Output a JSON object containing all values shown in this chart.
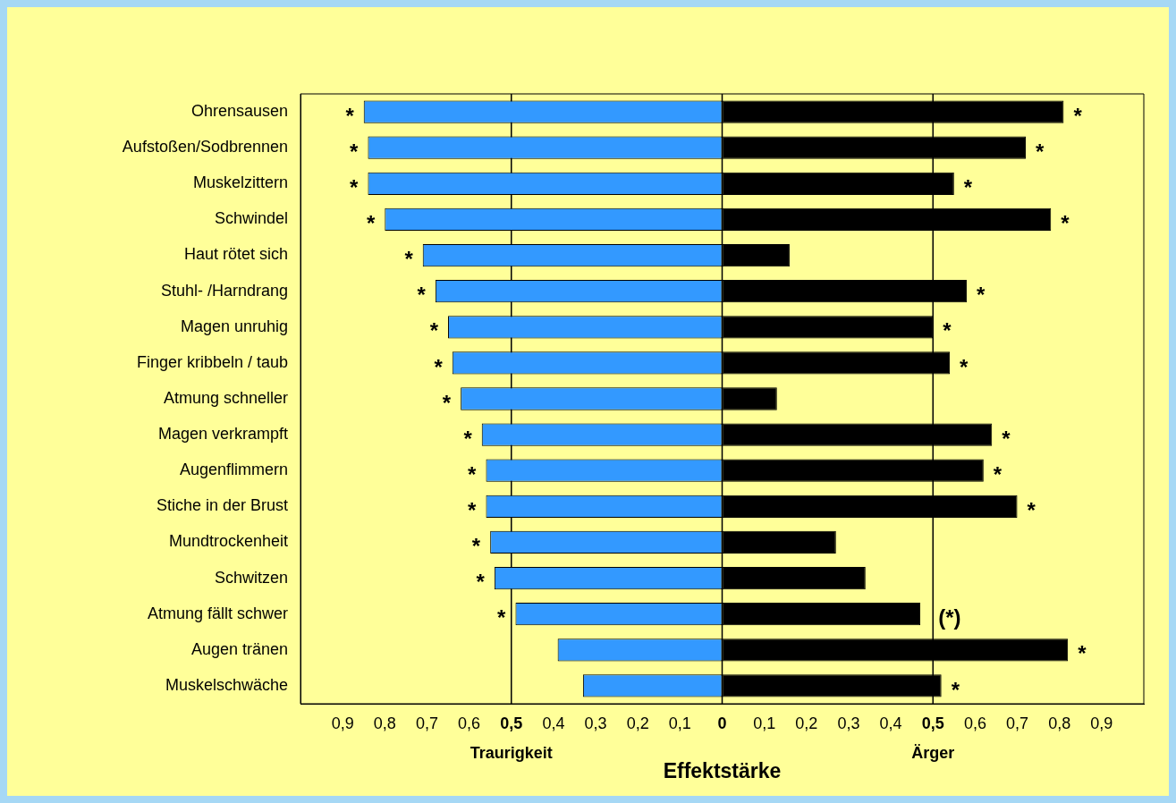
{
  "chart_data": {
    "type": "bar",
    "orientation": "horizontal",
    "stacked": true,
    "xlabel": "Effektstärke",
    "categories": [
      "Ohrensausen",
      "Aufstoßen/Sodbrennen",
      "Muskelzittern",
      "Schwindel",
      "Haut rötet sich",
      "Stuhl- /Harndrang",
      "Magen unruhig",
      "Finger kribbeln / taub",
      "Atmung schneller",
      "Magen verkrampft",
      "Augenflimmern",
      "Stiche in der Brust",
      "Mundtrockenheit",
      "Schwitzen",
      "Atmung fällt schwer",
      "Augen tränen",
      "Muskelschwäche"
    ],
    "series": [
      {
        "color": "#3399ff",
        "values": [
          -0.85,
          -0.84,
          -0.84,
          -0.8,
          -0.71,
          -0.68,
          -0.65,
          -0.64,
          -0.62,
          -0.57,
          -0.56,
          -0.56,
          -0.55,
          -0.54,
          -0.49,
          -0.39,
          -0.33
        ]
      },
      {
        "color": "#000000",
        "values": [
          0.81,
          0.72,
          0.55,
          0.78,
          0.16,
          0.58,
          0.5,
          0.54,
          0.13,
          0.64,
          0.62,
          0.7,
          0.27,
          0.34,
          0.47,
          0.82,
          0.52
        ]
      }
    ],
    "xlim": [
      -1,
      1
    ],
    "xticks": [
      {
        "value": -1,
        "label": null
      },
      {
        "value": -0.9,
        "label": "0,9"
      },
      {
        "value": -0.8,
        "label": "0,8"
      },
      {
        "value": -0.7,
        "label": "0,7"
      },
      {
        "value": -0.6,
        "label": "0,6"
      },
      {
        "value": -0.5,
        "label": "0,5"
      },
      {
        "value": -0.4,
        "label": "0,4"
      },
      {
        "value": -0.3,
        "label": "0,3"
      },
      {
        "value": -0.2,
        "label": "0,2"
      },
      {
        "value": -0.1,
        "label": "0,1"
      },
      0,
      {
        "value": 0.1,
        "label": "0,1"
      },
      {
        "value": 0.2,
        "label": "0,2"
      },
      {
        "value": 0.3,
        "label": "0,3"
      },
      {
        "value": 0.4,
        "label": "0,4"
      },
      {
        "value": 0.5,
        "label": "0,5"
      },
      {
        "value": 0.6,
        "label": "0,6"
      },
      {
        "value": 0.7,
        "label": "0,7"
      },
      {
        "value": 0.8,
        "label": "0,8"
      },
      {
        "value": 0.9,
        "label": "0,9"
      },
      {
        "value": 1,
        "label": null
      }
    ],
    "ref_lines": [
      {
        "axis": "x",
        "value": -0.5,
        "color": "#000000"
      },
      {
        "axis": "x",
        "value": 0,
        "color": "#000000"
      },
      {
        "axis": "x",
        "value": 0.5,
        "color": "#000000"
      }
    ],
    "annotations": [
      "Traurigkeit",
      "Ärger",
      {
        "text": "*",
        "x": -0.85,
        "y": "Ohrensausen"
      },
      {
        "text": "*",
        "x": -0.84,
        "y": "Aufstoßen/Sodbrennen"
      },
      {
        "text": "*",
        "x": -0.84,
        "y": "Muskelzittern"
      },
      {
        "text": "*",
        "x": -0.8,
        "y": "Schwindel"
      },
      {
        "text": "*",
        "x": -0.71,
        "y": "Haut rötet sich"
      },
      {
        "text": "*",
        "x": -0.68,
        "y": "Stuhl- /Harndrang"
      },
      {
        "text": "*",
        "x": -0.65,
        "y": "Magen unruhig"
      },
      {
        "text": "*",
        "x": -0.64,
        "y": "Finger kribbeln / taub"
      },
      {
        "text": "*",
        "x": -0.62,
        "y": "Atmung schneller"
      },
      {
        "text": "*",
        "x": -0.57,
        "y": "Magen verkrampft"
      },
      {
        "text": "*",
        "x": -0.56,
        "y": "Augenflimmern"
      },
      {
        "text": "*",
        "x": -0.56,
        "y": "Stiche in der Brust"
      },
      {
        "text": "*",
        "x": -0.55,
        "y": "Mundtrockenheit"
      },
      {
        "text": "*",
        "x": -0.54,
        "y": "Schwitzen"
      },
      {
        "text": "*",
        "x": -0.49,
        "y": "Atmung fällt schwer"
      },
      {
        "text": "*",
        "x": 0.81,
        "y": "Ohrensausen"
      },
      {
        "text": "*",
        "x": 0.72,
        "y": "Aufstoßen/Sodbrennen"
      },
      {
        "text": "*",
        "x": 0.55,
        "y": "Muskelzittern"
      },
      {
        "text": "*",
        "x": 0.78,
        "y": "Schwindel"
      },
      {
        "text": "*",
        "x": 0.58,
        "y": "Stuhl- /Harndrang"
      },
      {
        "text": "*",
        "x": 0.5,
        "y": "Magen unruhig"
      },
      {
        "text": "*",
        "x": 0.54,
        "y": "Finger kribbeln / taub"
      },
      {
        "text": "*",
        "x": 0.64,
        "y": "Magen verkrampft"
      },
      {
        "text": "*",
        "x": 0.62,
        "y": "Augenflimmern"
      },
      {
        "text": "*",
        "x": 0.7,
        "y": "Stiche in der Brust"
      },
      {
        "text": "(*)",
        "x": 0.47,
        "y": "Atmung fällt schwer"
      },
      {
        "text": "*",
        "x": 0.82,
        "y": "Augen tränen"
      },
      {
        "text": "*",
        "x": 0.52,
        "y": "Muskelschwäche"
      }
    ]
  }
}
